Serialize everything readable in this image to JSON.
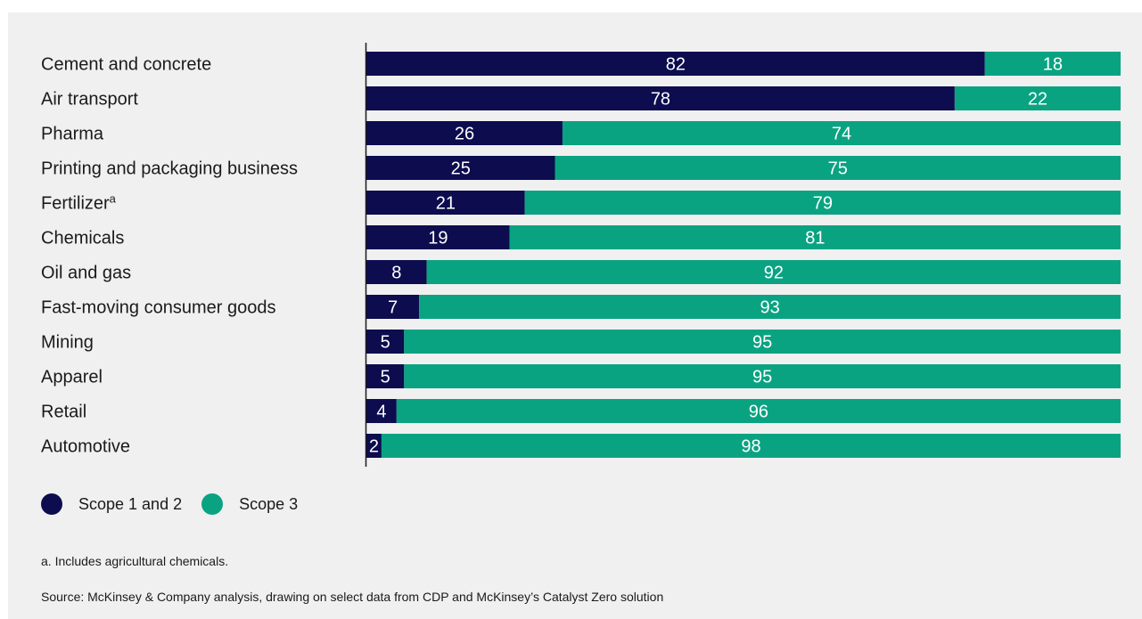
{
  "colors": {
    "scope12": "#0c0c4f",
    "scope3": "#0aa382",
    "background": "#f0f0f0"
  },
  "legend": {
    "scope12": "Scope 1 and 2",
    "scope3": "Scope 3"
  },
  "footnote": "a. Includes agricultural chemicals.",
  "source": "Source: McKinsey & Company analysis, drawing on select data from CDP and McKinsey’s Catalyst Zero solution",
  "chart_data": {
    "type": "bar",
    "orientation": "horizontal",
    "stacked": true,
    "categories": [
      "Cement and concrete",
      "Air transport",
      "Pharma",
      "Printing and packaging business",
      "Fertilizer",
      "Chemicals",
      "Oil and gas",
      "Fast-moving consumer goods",
      "Mining",
      "Apparel",
      "Retail",
      "Automotive"
    ],
    "category_superscripts": [
      "",
      "",
      "",
      "",
      "a",
      "",
      "",
      "",
      "",
      "",
      "",
      ""
    ],
    "series": [
      {
        "name": "Scope 1 and 2",
        "values": [
          82,
          78,
          26,
          25,
          21,
          19,
          8,
          7,
          5,
          5,
          4,
          2
        ]
      },
      {
        "name": "Scope 3",
        "values": [
          18,
          22,
          74,
          75,
          79,
          81,
          92,
          93,
          95,
          95,
          96,
          98
        ]
      }
    ],
    "xlim": [
      0,
      100
    ],
    "grid": false,
    "legend_position": "bottom-left"
  }
}
